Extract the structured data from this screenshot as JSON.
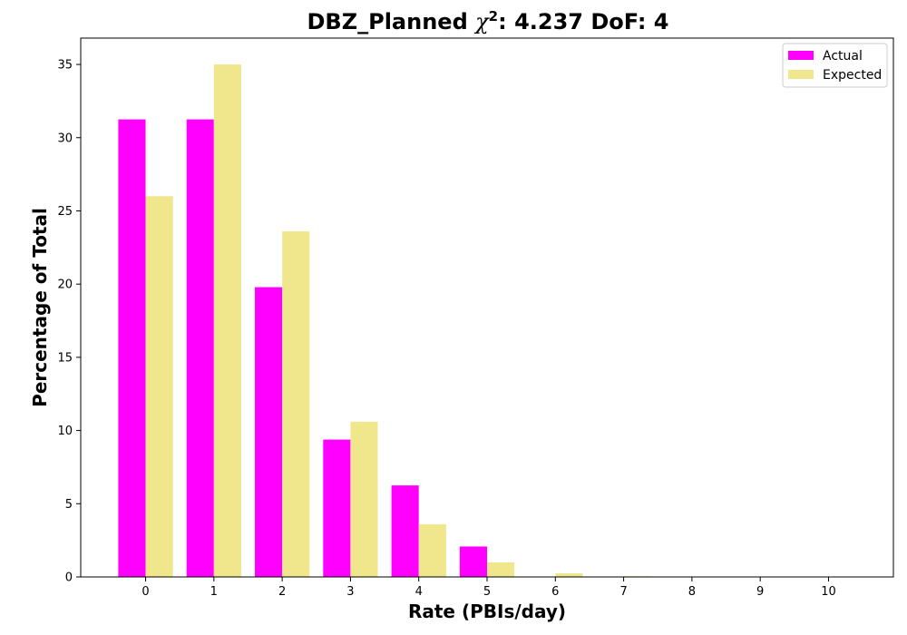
{
  "chart_data": {
    "type": "bar",
    "title": {
      "prefix": "DBZ_Planned ",
      "symbol": "χ",
      "superscript": "2",
      "suffix": ": 4.237 DoF: 4"
    },
    "xlabel": "Rate (PBIs/day)",
    "ylabel": "Percentage of Total",
    "categories": [
      "0",
      "1",
      "2",
      "3",
      "4",
      "5",
      "6",
      "7",
      "8",
      "9",
      "10"
    ],
    "yticks": [
      0,
      5,
      10,
      15,
      20,
      25,
      30,
      35
    ],
    "ylim": [
      0,
      36.8
    ],
    "xlim": [
      -0.95,
      10.95
    ],
    "series": [
      {
        "name": "Actual",
        "color": "#ff00ff",
        "values": [
          31.25,
          31.25,
          19.79,
          9.38,
          6.25,
          2.08,
          0,
          0,
          0,
          0,
          0
        ]
      },
      {
        "name": "Expected",
        "color": "#f0e68c",
        "values": [
          26.0,
          35.0,
          23.6,
          10.6,
          3.6,
          1.0,
          0.25,
          0.05,
          0,
          0,
          0
        ]
      }
    ],
    "grid": false,
    "legend_position": "top-right"
  }
}
